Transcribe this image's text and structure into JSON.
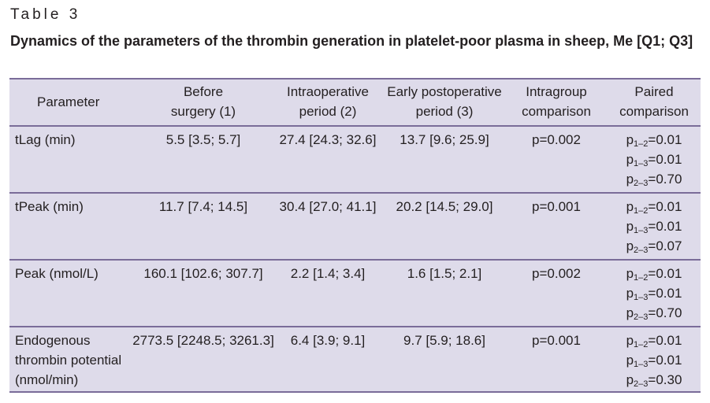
{
  "table_label": "Table 3",
  "caption": "Dynamics of the parameters of the thrombin generation in platelet-poor plasma in sheep, Me [Q1; Q3]",
  "headers": {
    "parameter": "Parameter",
    "before_1": "Before",
    "before_2": "surgery (1)",
    "intra_1": "Intraoperative",
    "intra_2": "period (2)",
    "early_1": "Early postoperative",
    "early_2": "period (3)",
    "intragroup_1": "Intragroup",
    "intragroup_2": "comparison",
    "paired_1": "Paired",
    "paired_2": "comparison"
  },
  "rows": [
    {
      "parameter": [
        "tLag (min)"
      ],
      "before": "5.5 [3.5; 5.7]",
      "intra": "27.4 [24.3; 32.6]",
      "early": "13.7 [9.6; 25.9]",
      "intragroup": "p=0.002",
      "paired": [
        {
          "p": "p",
          "sub": "1–2",
          "val": "=0.01"
        },
        {
          "p": "p",
          "sub": "1–3",
          "val": "=0.01"
        },
        {
          "p": "p",
          "sub": "2–3",
          "val": "=0.70"
        }
      ]
    },
    {
      "parameter": [
        "tPeak (min)"
      ],
      "before": "11.7 [7.4; 14.5]",
      "intra": "30.4 [27.0; 41.1]",
      "early": "20.2 [14.5; 29.0]",
      "intragroup": "p=0.001",
      "paired": [
        {
          "p": "p",
          "sub": "1–2",
          "val": "=0.01"
        },
        {
          "p": "p",
          "sub": "1–3",
          "val": "=0.01"
        },
        {
          "p": "p",
          "sub": "2–3",
          "val": "=0.07"
        }
      ]
    },
    {
      "parameter": [
        "Peak (nmol/L)"
      ],
      "before": "160.1 [102.6; 307.7]",
      "intra": "2.2 [1.4; 3.4]",
      "early": "1.6 [1.5; 2.1]",
      "intragroup": "p=0.002",
      "paired": [
        {
          "p": "p",
          "sub": "1–2",
          "val": "=0.01"
        },
        {
          "p": "p",
          "sub": "1–3",
          "val": "=0.01"
        },
        {
          "p": "p",
          "sub": "2–3",
          "val": "=0.70"
        }
      ]
    },
    {
      "parameter": [
        "Endogenous",
        "thrombin potential",
        "(nmol/min)"
      ],
      "before": "2773.5 [2248.5; 3261.3]",
      "intra": "6.4 [3.9; 9.1]",
      "early": "9.7 [5.9; 18.6]",
      "intragroup": "p=0.001",
      "paired": [
        {
          "p": "p",
          "sub": "1–2",
          "val": "=0.01"
        },
        {
          "p": "p",
          "sub": "1–3",
          "val": "=0.01"
        },
        {
          "p": "p",
          "sub": "2–3",
          "val": "=0.30"
        }
      ]
    }
  ]
}
